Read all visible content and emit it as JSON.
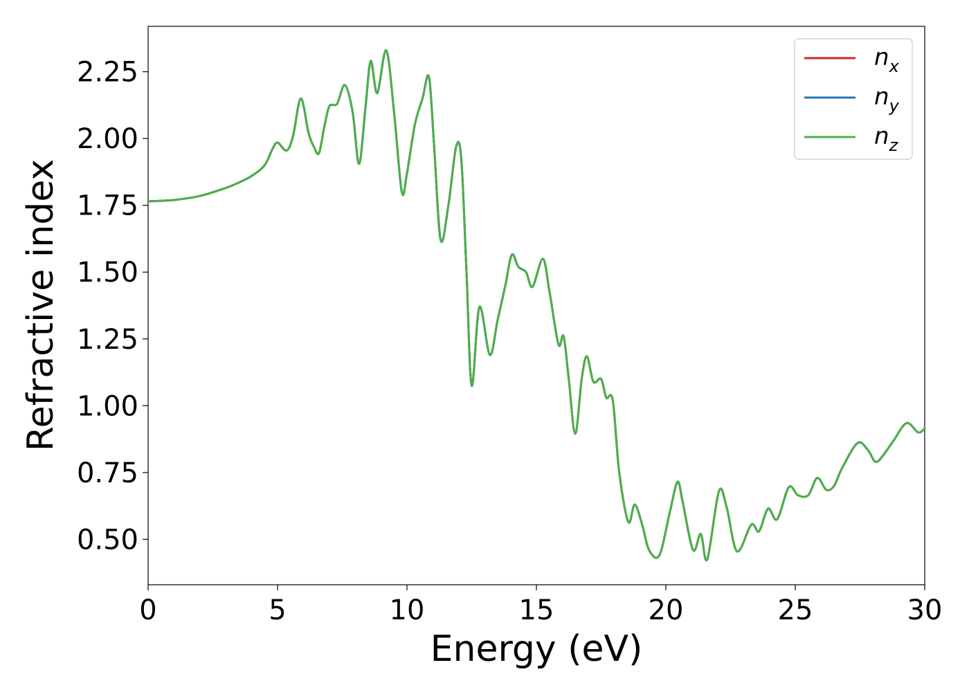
{
  "chart_data": {
    "type": "line",
    "title": "",
    "xlabel": "Energy (eV)",
    "ylabel": "Refractive index",
    "xlim": [
      0,
      30
    ],
    "ylim": [
      0.33,
      2.42
    ],
    "xticks": [
      0,
      5,
      10,
      15,
      20,
      25,
      30
    ],
    "yticks": [
      0.5,
      0.75,
      1.0,
      1.25,
      1.5,
      1.75,
      2.0,
      2.25
    ],
    "grid": false,
    "legend_position": "top-right",
    "legend": [
      {
        "label": "n",
        "sub": "x",
        "color": "#d62728"
      },
      {
        "label": "n",
        "sub": "y",
        "color": "#1f77b4"
      },
      {
        "label": "n",
        "sub": "z",
        "color": "#4daf4a"
      }
    ],
    "curve": [
      [
        0,
        1.765
      ],
      [
        1,
        1.77
      ],
      [
        2,
        1.785
      ],
      [
        3,
        1.815
      ],
      [
        3.5,
        1.835
      ],
      [
        4,
        1.86
      ],
      [
        4.5,
        1.9
      ],
      [
        4.8,
        1.96
      ],
      [
        5.0,
        1.985
      ],
      [
        5.35,
        1.955
      ],
      [
        5.6,
        2.01
      ],
      [
        5.9,
        2.15
      ],
      [
        6.2,
        2.02
      ],
      [
        6.4,
        1.97
      ],
      [
        6.6,
        1.945
      ],
      [
        6.8,
        2.04
      ],
      [
        7.0,
        2.12
      ],
      [
        7.3,
        2.13
      ],
      [
        7.6,
        2.2
      ],
      [
        7.9,
        2.1
      ],
      [
        8.15,
        1.905
      ],
      [
        8.4,
        2.12
      ],
      [
        8.6,
        2.29
      ],
      [
        8.85,
        2.17
      ],
      [
        9.2,
        2.33
      ],
      [
        9.5,
        2.1
      ],
      [
        9.8,
        1.8
      ],
      [
        10.0,
        1.87
      ],
      [
        10.3,
        2.05
      ],
      [
        10.6,
        2.15
      ],
      [
        10.85,
        2.23
      ],
      [
        11.05,
        1.97
      ],
      [
        11.3,
        1.62
      ],
      [
        11.6,
        1.75
      ],
      [
        11.9,
        1.97
      ],
      [
        12.1,
        1.92
      ],
      [
        12.3,
        1.5
      ],
      [
        12.5,
        1.075
      ],
      [
        12.8,
        1.37
      ],
      [
        13.2,
        1.19
      ],
      [
        13.5,
        1.32
      ],
      [
        13.8,
        1.45
      ],
      [
        14.05,
        1.565
      ],
      [
        14.3,
        1.52
      ],
      [
        14.6,
        1.5
      ],
      [
        14.85,
        1.445
      ],
      [
        15.25,
        1.55
      ],
      [
        15.5,
        1.43
      ],
      [
        15.85,
        1.23
      ],
      [
        16.05,
        1.26
      ],
      [
        16.25,
        1.1
      ],
      [
        16.5,
        0.895
      ],
      [
        16.75,
        1.1
      ],
      [
        16.95,
        1.185
      ],
      [
        17.2,
        1.09
      ],
      [
        17.5,
        1.1
      ],
      [
        17.7,
        1.03
      ],
      [
        17.95,
        1.02
      ],
      [
        18.2,
        0.75
      ],
      [
        18.55,
        0.565
      ],
      [
        18.8,
        0.63
      ],
      [
        19.1,
        0.55
      ],
      [
        19.35,
        0.46
      ],
      [
        19.75,
        0.44
      ],
      [
        20.15,
        0.6
      ],
      [
        20.45,
        0.715
      ],
      [
        20.65,
        0.64
      ],
      [
        21.05,
        0.46
      ],
      [
        21.35,
        0.52
      ],
      [
        21.6,
        0.425
      ],
      [
        22.05,
        0.68
      ],
      [
        22.35,
        0.62
      ],
      [
        22.75,
        0.455
      ],
      [
        23.3,
        0.555
      ],
      [
        23.6,
        0.53
      ],
      [
        23.95,
        0.615
      ],
      [
        24.3,
        0.575
      ],
      [
        24.75,
        0.695
      ],
      [
        25.1,
        0.665
      ],
      [
        25.5,
        0.665
      ],
      [
        25.85,
        0.73
      ],
      [
        26.2,
        0.685
      ],
      [
        26.5,
        0.7
      ],
      [
        26.8,
        0.765
      ],
      [
        27.4,
        0.86
      ],
      [
        27.8,
        0.835
      ],
      [
        28.1,
        0.79
      ],
      [
        28.4,
        0.815
      ],
      [
        28.8,
        0.87
      ],
      [
        29.3,
        0.935
      ],
      [
        29.75,
        0.9
      ],
      [
        30,
        0.915
      ]
    ]
  }
}
